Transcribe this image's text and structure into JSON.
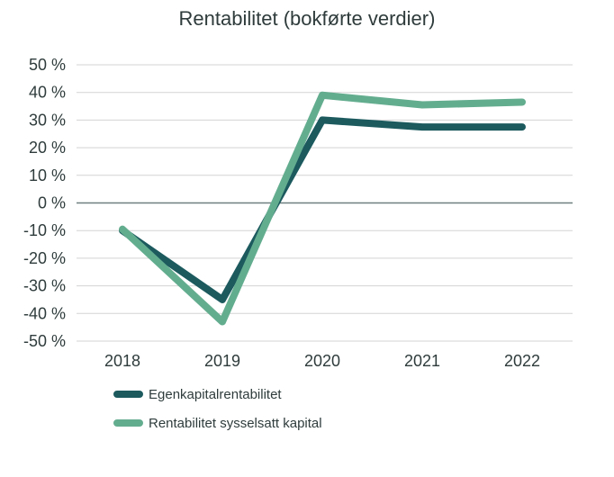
{
  "chart_data": {
    "type": "line",
    "title": "Rentabilitet (bokførte verdier)",
    "xlabel": "",
    "ylabel": "",
    "categories": [
      "2018",
      "2019",
      "2020",
      "2021",
      "2022"
    ],
    "ylim": [
      -50,
      50
    ],
    "yticks": [
      50,
      40,
      30,
      20,
      10,
      0,
      -10,
      -20,
      -30,
      -40,
      -50
    ],
    "ytick_labels": [
      "50 %",
      "40 %",
      "30 %",
      "20 %",
      "10 %",
      "0 %",
      "-10 %",
      "-20 %",
      "-30 %",
      "-40 %",
      "-50 %"
    ],
    "grid": true,
    "legend_position": "bottom-left",
    "series": [
      {
        "name": "Egenkapitalrentabilitet",
        "color": "#1c5a5e",
        "values": [
          -10,
          -35,
          30,
          27.5,
          27.5
        ]
      },
      {
        "name": "Rentabilitet sysselsatt kapital",
        "color": "#63ad8f",
        "values": [
          -9.5,
          -43,
          39,
          35.5,
          36.5
        ]
      }
    ]
  }
}
